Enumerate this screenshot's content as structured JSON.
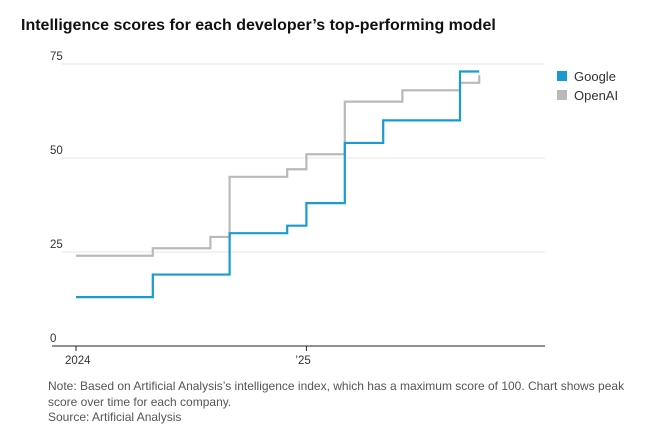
{
  "chart_data": {
    "type": "line",
    "step": true,
    "title": "Intelligence scores for each developer’s top-performing model",
    "xlabel": "",
    "ylabel": "",
    "x_ticks": [
      "2024",
      "’25"
    ],
    "y_ticks": [
      0,
      25,
      50,
      75
    ],
    "ylim": [
      0,
      75
    ],
    "xlim": [
      "2024-01",
      "2025-10"
    ],
    "grid": true,
    "legend": "top-right",
    "series": [
      {
        "name": "Google",
        "color": "#1a9bd0",
        "points": [
          [
            "2024-01",
            13
          ],
          [
            "2024-05",
            19
          ],
          [
            "2024-09",
            30
          ],
          [
            "2024-12",
            32
          ],
          [
            "2025-01",
            38
          ],
          [
            "2025-03",
            54
          ],
          [
            "2025-05",
            60
          ],
          [
            "2025-09",
            73
          ],
          [
            "2025-10",
            73
          ]
        ]
      },
      {
        "name": "OpenAI",
        "color": "#b9b9b9",
        "points": [
          [
            "2024-01",
            24
          ],
          [
            "2024-05",
            26
          ],
          [
            "2024-08",
            29
          ],
          [
            "2024-09",
            45
          ],
          [
            "2024-12",
            47
          ],
          [
            "2025-01",
            51
          ],
          [
            "2025-03",
            65
          ],
          [
            "2025-06",
            68
          ],
          [
            "2025-09",
            70
          ],
          [
            "2025-10",
            72
          ]
        ]
      }
    ]
  },
  "footer": {
    "note": "Note: Based on Artificial Analysis’s intelligence index, which has a maximum score of 100. Chart shows peak score over time for each company.",
    "source": "Source: Artificial Analysis"
  }
}
